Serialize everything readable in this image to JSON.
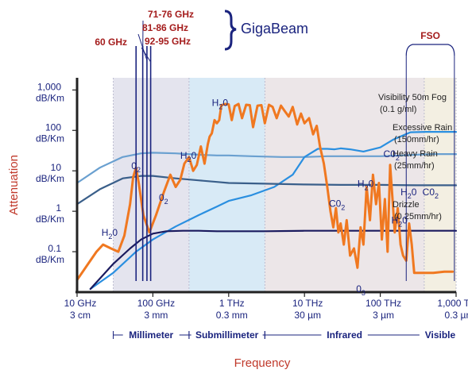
{
  "chart_data": {
    "type": "line",
    "title": "",
    "xlabel": "Frequency",
    "ylabel": "Attenuation",
    "x_scale": "log",
    "y_scale": "log",
    "xlim_hz": [
      10000000000.0,
      1000000000000000.0
    ],
    "ylim_db_per_km": [
      0.01,
      2000
    ],
    "y_ticks": [
      {
        "v": 1000,
        "l1": "1,000",
        "l2": "dB/Km"
      },
      {
        "v": 100,
        "l1": "100",
        "l2": "dB/Km"
      },
      {
        "v": 10,
        "l1": "10",
        "l2": "dB/Km"
      },
      {
        "v": 1,
        "l1": "1",
        "l2": "dB/Km"
      },
      {
        "v": 0.1,
        "l1": "0.1",
        "l2": "dB/Km"
      }
    ],
    "x_ticks": [
      {
        "v": 10000000000.0,
        "l1": "10 GHz",
        "l2": "3 cm"
      },
      {
        "v": 100000000000.0,
        "l1": "100 GHz",
        "l2": "3 mm"
      },
      {
        "v": 1000000000000.0,
        "l1": "1 THz",
        "l2": "0.3 mm"
      },
      {
        "v": 10000000000000.0,
        "l1": "10 THz",
        "l2": "30 µm"
      },
      {
        "v": 100000000000000.0,
        "l1": "100 THz",
        "l2": "3 µm"
      },
      {
        "v": 1000000000000000.0,
        "l1": "1,000 THz",
        "l2": "0.3 µm"
      }
    ],
    "bands": [
      {
        "name": "Millimeter",
        "from": 30000000000.0,
        "to": 300000000000.0,
        "color": "#e4e4ee"
      },
      {
        "name": "Submillimeter",
        "from": 300000000000.0,
        "to": 3000000000000.0,
        "color": "#d8eaf6"
      },
      {
        "name": "Infrared",
        "from": 3000000000000.0,
        "to": 380000000000000.0,
        "color": "#ece6e8"
      },
      {
        "name": "Visible",
        "from": 380000000000000.0,
        "to": 1000000000000000.0,
        "color": "#f3efe2"
      }
    ],
    "series": [
      {
        "name": "Visibility 50m Fog (0.1 g/ml)",
        "color": "#6aa0d0",
        "x": [
          10000000000.0,
          20000000000.0,
          40000000000.0,
          70000000000.0,
          100000000000.0,
          200000000000.0,
          400000000000.0,
          700000000000.0,
          1000000000000.0,
          2000000000000.0,
          5000000000000.0,
          10000000000000.0,
          20000000000000.0,
          50000000000000.0,
          100000000000000.0,
          200000000000000.0,
          300000000000000.0,
          500000000000000.0,
          1000000000000000.0
        ],
        "values": [
          5,
          12,
          22,
          27,
          28,
          27,
          25,
          24,
          24,
          23,
          22,
          22,
          23,
          23,
          23,
          24,
          25,
          26,
          26
        ]
      },
      {
        "name": "Excessive Rain (150mm/hr)",
        "color": "#2a8fe0",
        "x": [
          15000000000.0,
          30000000000.0,
          60000000000.0,
          100000000000.0,
          200000000000.0,
          400000000000.0,
          700000000000.0,
          1000000000000.0,
          2000000000000.0,
          4000000000000.0,
          7000000000000.0,
          10000000000000.0,
          15000000000000.0,
          20000000000000.0,
          25000000000000.0,
          30000000000000.0,
          40000000000000.0,
          60000000000000.0,
          100000000000000.0,
          150000000000000.0,
          250000000000000.0,
          400000000000000.0,
          600000000000000.0,
          1000000000000000.0
        ],
        "values": [
          0.012,
          0.03,
          0.1,
          0.2,
          0.42,
          0.8,
          1.3,
          1.8,
          2.5,
          4,
          8,
          22,
          35,
          35,
          34,
          36,
          34,
          30,
          38,
          60,
          90,
          92,
          92,
          92
        ]
      },
      {
        "name": "Heavy Rain (25mm/hr)",
        "color": "#3a5f8a",
        "x": [
          10000000000.0,
          20000000000.0,
          40000000000.0,
          70000000000.0,
          100000000000.0,
          200000000000.0,
          400000000000.0,
          700000000000.0,
          1000000000000.0,
          3000000000000.0,
          10000000000000.0,
          30000000000000.0,
          100000000000000.0,
          300000000000000.0,
          1000000000000000.0
        ],
        "values": [
          1.5,
          3.5,
          6.5,
          7.5,
          7.5,
          6.5,
          5.8,
          5.3,
          5,
          4.8,
          4.6,
          4.5,
          4.5,
          4.4,
          4.4
        ]
      },
      {
        "name": "Drizzle (0.25mm/hr)",
        "color": "#1a1a5e",
        "x": [
          15000000000.0,
          30000000000.0,
          50000000000.0,
          70000000000.0,
          100000000000.0,
          150000000000.0,
          250000000000.0,
          400000000000.0,
          700000000000.0,
          1000000000000.0,
          3000000000000.0,
          10000000000000.0,
          30000000000000.0,
          100000000000000.0,
          300000000000000.0,
          1000000000000000.0
        ],
        "values": [
          0.012,
          0.05,
          0.12,
          0.2,
          0.28,
          0.32,
          0.33,
          0.33,
          0.32,
          0.32,
          0.32,
          0.33,
          0.33,
          0.33,
          0.33,
          0.33
        ]
      },
      {
        "name": "",
        "color": "#f07820",
        "x": [
          10000000000.0,
          14000000000.0,
          18000000000.0,
          22000000000.0,
          28000000000.0,
          35000000000.0,
          42000000000.0,
          50000000000.0,
          55000000000.0,
          60000000000.0,
          65000000000.0,
          75000000000.0,
          90000000000.0,
          110000000000.0,
          140000000000.0,
          170000000000.0,
          200000000000.0,
          230000000000.0,
          260000000000.0,
          300000000000.0,
          340000000000.0,
          380000000000.0,
          430000000000.0,
          480000000000.0,
          530000000000.0,
          560000000000.0,
          600000000000.0,
          650000000000.0,
          700000000000.0,
          750000000000.0,
          800000000000.0,
          900000000000.0,
          1000000000000.0,
          1100000000000.0,
          1200000000000.0,
          1350000000000.0,
          1500000000000.0,
          1700000000000.0,
          1900000000000.0,
          2100000000000.0,
          2400000000000.0,
          2700000000000.0,
          3000000000000.0,
          3400000000000.0,
          3800000000000.0,
          4300000000000.0,
          4900000000000.0,
          5500000000000.0,
          6200000000000.0,
          7000000000000.0,
          8000000000000.0,
          9000000000000.0,
          10000000000000.0,
          11500000000000.0,
          13000000000000.0,
          14500000000000.0,
          16000000000000.0,
          18000000000000.0,
          20000000000000.0,
          22000000000000.0,
          24000000000000.0,
          26000000000000.0,
          28000000000000.0,
          30000000000000.0,
          33000000000000.0,
          36000000000000.0,
          40000000000000.0,
          45000000000000.0,
          50000000000000.0,
          55000000000000.0,
          60000000000000.0,
          66000000000000.0,
          73000000000000.0,
          80000000000000.0,
          88000000000000.0,
          96000000000000.0,
          105000000000000.0,
          115000000000000.0,
          125000000000000.0,
          135000000000000.0,
          145000000000000.0,
          155000000000000.0,
          170000000000000.0,
          185000000000000.0,
          200000000000000.0,
          220000000000000.0,
          240000000000000.0,
          260000000000000.0,
          280000000000000.0,
          350000000000000.0,
          500000000000000.0,
          700000000000000.0,
          900000000000000.0
        ],
        "values": [
          0.02,
          0.05,
          0.1,
          0.15,
          0.12,
          0.1,
          0.25,
          1.5,
          7,
          12,
          5,
          0.8,
          0.3,
          0.8,
          3,
          8,
          4,
          6,
          15,
          22,
          10,
          14,
          40,
          15,
          45,
          70,
          85,
          180,
          150,
          180,
          420,
          450,
          440,
          180,
          400,
          450,
          200,
          430,
          420,
          120,
          410,
          420,
          150,
          430,
          380,
          200,
          410,
          300,
          220,
          380,
          140,
          260,
          150,
          200,
          80,
          130,
          40,
          15,
          4,
          1,
          0.4,
          1.2,
          0.3,
          0.5,
          0.15,
          0.6,
          0.08,
          0.12,
          0.04,
          0.4,
          0.15,
          4,
          0.6,
          8,
          1.5,
          5,
          0.2,
          2,
          0.1,
          14,
          2,
          0.3,
          1.2,
          0.15,
          0.08,
          0.06,
          0.5,
          0.15,
          0.03,
          0.03,
          0.03,
          0.032,
          0.032
        ]
      }
    ],
    "series_labels": [
      {
        "text": "Visibility 50m Fog",
        "line2": "(0.1 g/ml)"
      },
      {
        "text": "Excessive Rain",
        "line2": "(150mm/hr)"
      },
      {
        "text": "Heavy Rain",
        "line2": "(25mm/hr)"
      },
      {
        "text": "Drizzle",
        "line2": "(0.25mm/hr)"
      }
    ],
    "annotations": [
      {
        "t": "H",
        "sub": "2",
        "t2": "0",
        "x": 21000000000.0,
        "y": 0.25
      },
      {
        "t": "0",
        "sub": "2",
        "t2": "",
        "x": 52000000000.0,
        "y": 11
      },
      {
        "t": "0",
        "sub": "2",
        "t2": "",
        "x": 120000000000.0,
        "y": 1.8
      },
      {
        "t": "H",
        "sub": "2",
        "t2": "0",
        "x": 230000000000.0,
        "y": 20
      },
      {
        "t": "H",
        "sub": "2",
        "t2": "0",
        "x": 600000000000.0,
        "y": 400
      },
      {
        "t": "C0",
        "sub": "2",
        "t2": "",
        "x": 21000000000000.0,
        "y": 1.3
      },
      {
        "t": "H",
        "sub": "2",
        "t2": "0",
        "x": 50000000000000.0,
        "y": 4
      },
      {
        "t": "C0",
        "sub": "2",
        "t2": "",
        "x": 110000000000000.0,
        "y": 22
      },
      {
        "t": "0",
        "sub": "3",
        "t2": "",
        "x": 48000000000000.0,
        "y": 0.01
      },
      {
        "t": "H",
        "sub": "2",
        "t2": "0",
        "x": 185000000000000.0,
        "y": 2.5
      },
      {
        "t": "H",
        "sub": "2",
        "t2": "0",
        "x": 140000000000000.0,
        "y": 0.5
      },
      {
        "t": "C0",
        "sub": "2",
        "t2": "",
        "x": 360000000000000.0,
        "y": 2.5
      }
    ],
    "markers": [
      {
        "label": "60 GHz",
        "f": 60000000000.0
      },
      {
        "label": "71-76 GHz",
        "f": 73500000000.0
      },
      {
        "label": "81-86 GHz",
        "f": 83500000000.0
      },
      {
        "label": "92-95 GHz",
        "f": 93500000000.0
      }
    ],
    "brace_label": "GigaBeam",
    "fso_label": "FSO",
    "fso_range": [
      220000000000000.0,
      950000000000000.0
    ],
    "colors": {
      "marker_red": "#a41c1c",
      "axis_label_red": "#c0392b",
      "navy": "#1a237e",
      "dark": "#222222"
    }
  }
}
